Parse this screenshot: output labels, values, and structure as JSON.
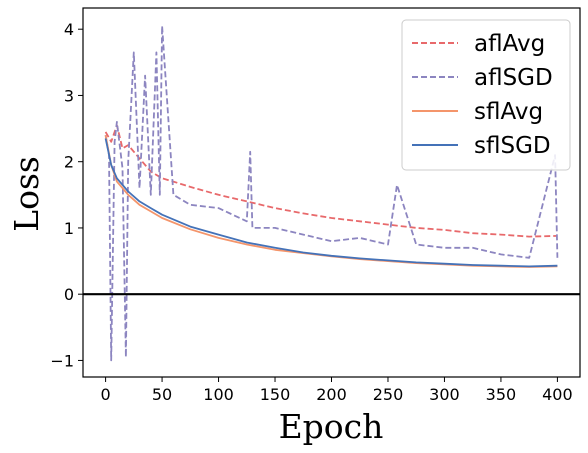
{
  "chart_data": {
    "type": "line",
    "xlabel": "Epoch",
    "ylabel": "Loss",
    "xlim": [
      -20,
      420
    ],
    "ylim": [
      -1.25,
      4.32
    ],
    "xticks": [
      0,
      50,
      100,
      150,
      200,
      250,
      300,
      350,
      400
    ],
    "yticks": [
      -1,
      0,
      1,
      2,
      3,
      4
    ],
    "grid": false,
    "legend_position": "top-right",
    "reference_line": {
      "y": 0,
      "color": "#000000"
    },
    "series": [
      {
        "name": "aflAvg",
        "color": "#e8696b",
        "dash": true,
        "x": [
          0,
          5,
          10,
          15,
          20,
          30,
          40,
          50,
          60,
          75,
          100,
          125,
          150,
          175,
          200,
          225,
          250,
          275,
          300,
          325,
          350,
          375,
          400
        ],
        "y": [
          2.45,
          2.3,
          2.55,
          2.2,
          2.25,
          2.05,
          1.85,
          1.75,
          1.7,
          1.62,
          1.5,
          1.4,
          1.3,
          1.22,
          1.15,
          1.1,
          1.05,
          1.0,
          0.97,
          0.92,
          0.9,
          0.87,
          0.88
        ]
      },
      {
        "name": "aflSGD",
        "color": "#8c85c0",
        "dash": true,
        "x": [
          0,
          3,
          5,
          8,
          10,
          15,
          18,
          20,
          25,
          30,
          35,
          40,
          45,
          48,
          50,
          60,
          75,
          100,
          125,
          128,
          130,
          150,
          175,
          200,
          225,
          250,
          258,
          275,
          300,
          325,
          350,
          375,
          398,
          400
        ],
        "y": [
          2.4,
          2.1,
          -1.0,
          2.3,
          2.6,
          1.9,
          -0.95,
          2.0,
          3.65,
          1.6,
          3.3,
          1.5,
          3.65,
          1.5,
          4.05,
          1.5,
          1.35,
          1.3,
          1.1,
          2.15,
          1.0,
          1.0,
          0.9,
          0.8,
          0.85,
          0.75,
          1.65,
          0.75,
          0.7,
          0.7,
          0.6,
          0.55,
          2.1,
          0.55
        ]
      },
      {
        "name": "sflAvg",
        "color": "#f4956b",
        "dash": false,
        "x": [
          0,
          5,
          10,
          20,
          30,
          40,
          50,
          75,
          100,
          125,
          150,
          175,
          200,
          225,
          250,
          275,
          300,
          325,
          350,
          375,
          400
        ],
        "y": [
          2.4,
          1.95,
          1.7,
          1.5,
          1.35,
          1.25,
          1.15,
          0.98,
          0.85,
          0.75,
          0.67,
          0.62,
          0.57,
          0.53,
          0.5,
          0.47,
          0.45,
          0.43,
          0.42,
          0.41,
          0.42
        ]
      },
      {
        "name": "sflSGD",
        "color": "#4472b8",
        "dash": false,
        "x": [
          0,
          5,
          10,
          20,
          30,
          40,
          50,
          75,
          100,
          125,
          150,
          175,
          200,
          225,
          250,
          275,
          300,
          325,
          350,
          375,
          400
        ],
        "y": [
          2.35,
          1.95,
          1.75,
          1.55,
          1.4,
          1.3,
          1.2,
          1.02,
          0.9,
          0.78,
          0.7,
          0.63,
          0.58,
          0.54,
          0.51,
          0.48,
          0.46,
          0.44,
          0.43,
          0.42,
          0.43
        ]
      }
    ]
  }
}
